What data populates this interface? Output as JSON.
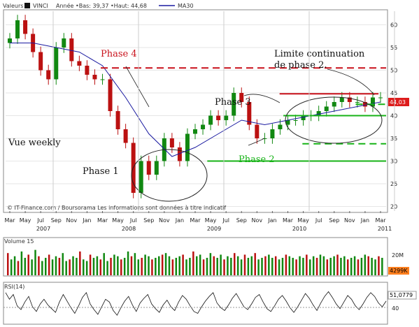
{
  "header": {
    "valeurs_label": "Valeurs",
    "symbol": "VINCI",
    "range": "Année •Bas: 39,37 •Haut: 44,68",
    "ma_label": "MA30"
  },
  "colors": {
    "candle_up": "#118811",
    "candle_down": "#bb1111",
    "ma": "#1a1aa0",
    "phase_red": "#c8101a",
    "phase_green": "#17b317",
    "last_price_bg": "#dd1c1c",
    "volume_bg": "#ff7f1e"
  },
  "annotations": {
    "phase4": "Phase 4",
    "phase1": "Phase 1",
    "phase2": "Phase 2",
    "phase3": "Phase 3",
    "limit_line1": "Limite continuation",
    "limit_line2": "de phase 2.",
    "vue_weekly": "Vue weekly",
    "watermark": "© IT-Finance.com / Boursorama Les informations sont données à titre indicatif"
  },
  "chart_data": [
    {
      "type": "candlestick",
      "title": "VINCI",
      "frequency": "weekly",
      "x_tick_labels": [
        "Mar",
        "May",
        "Jul",
        "Sep",
        "Nov",
        "Jan",
        "Mar",
        "May",
        "Jul",
        "Sep",
        "Nov",
        "Jan",
        "Mar",
        "May",
        "Jul",
        "Sep",
        "Nov",
        "Jan",
        "Mar",
        "May",
        "Jul",
        "Sep",
        "Nov",
        "Jan",
        "Mar"
      ],
      "year_labels": [
        "2007",
        "2008",
        "2009",
        "2010",
        "2011"
      ],
      "ylim": [
        19,
        63
      ],
      "y_ticks": [
        20,
        25,
        30,
        35,
        40,
        45,
        50,
        55,
        60
      ],
      "last_price_label": "44,03",
      "series": [
        {
          "name": "VINCI",
          "x": [
            0,
            1,
            2,
            3,
            4,
            5,
            6,
            7,
            8,
            9,
            10,
            11,
            12,
            13,
            14,
            15,
            16,
            17,
            18,
            19,
            20,
            21,
            22,
            23,
            24,
            25,
            26,
            27,
            28,
            29,
            30,
            31,
            32,
            33,
            34,
            35,
            36,
            37,
            38,
            39,
            40,
            41,
            42,
            43,
            44,
            45,
            46,
            47,
            48
          ],
          "close": [
            57,
            61,
            58,
            54,
            50,
            48,
            55,
            57,
            52,
            51,
            49,
            48,
            48,
            41,
            37,
            34,
            23,
            30,
            27,
            30,
            35,
            33,
            30,
            36,
            37,
            38,
            40,
            39,
            40,
            45,
            43,
            38,
            35,
            35,
            37,
            38,
            39,
            39,
            40,
            40,
            41,
            42,
            43,
            44,
            43,
            43,
            42,
            44,
            44
          ]
        },
        {
          "name": "MA30",
          "x": [
            0,
            3,
            6,
            9,
            12,
            15,
            18,
            21,
            24,
            27,
            30,
            33,
            36,
            39,
            42,
            45,
            48
          ],
          "values": [
            56,
            56,
            55,
            54,
            51,
            44,
            36,
            31,
            33,
            36,
            39,
            38,
            39,
            40,
            41,
            42,
            43
          ]
        }
      ],
      "horizontal_lines": [
        {
          "label": "Phase 4",
          "value": 50.5,
          "style": "dashed",
          "color": "red"
        },
        {
          "value": 44.8,
          "style": "solid",
          "color": "red"
        },
        {
          "value": 42.5,
          "style": "dashed",
          "color": "green"
        },
        {
          "value": 40,
          "style": "solid",
          "color": "green"
        },
        {
          "value": 33.8,
          "style": "dashed",
          "color": "green"
        },
        {
          "label": "Phase 2",
          "value": 30,
          "style": "solid",
          "color": "green"
        }
      ]
    },
    {
      "type": "bar",
      "title": "Volume 15",
      "y_tick_labels": [
        "20M",
        "10M"
      ],
      "last_value_label": "4299K",
      "values": [
        14,
        10,
        12,
        9,
        15,
        11,
        13,
        10,
        16,
        12,
        9,
        11,
        13,
        10,
        12,
        11,
        14,
        9,
        10,
        12,
        11,
        15,
        10,
        9,
        13,
        11,
        12,
        10,
        14,
        9,
        11,
        13,
        12,
        10,
        11,
        15,
        12,
        14,
        10,
        11,
        13,
        12,
        10,
        11,
        12,
        13,
        14,
        12,
        10,
        11,
        12,
        13,
        10,
        11,
        15,
        12,
        13,
        10,
        11,
        14,
        12,
        11,
        13,
        10,
        12,
        11,
        14,
        12,
        10,
        13,
        11,
        12,
        14,
        10,
        11,
        12,
        13,
        11,
        12,
        10,
        11,
        13,
        12,
        11,
        10,
        12,
        11,
        13,
        10,
        12,
        11,
        13,
        12,
        10,
        11,
        12,
        13,
        11,
        12,
        10,
        11,
        12,
        10,
        11,
        13,
        12,
        11,
        10,
        12,
        11
      ]
    },
    {
      "type": "line",
      "title": "RSI(14)",
      "y_tick_labels": [
        "60",
        "40"
      ],
      "last_value_label": "51,0779",
      "values": [
        62,
        55,
        60,
        48,
        44,
        52,
        58,
        47,
        42,
        50,
        55,
        49,
        45,
        41,
        52,
        60,
        53,
        46,
        40,
        48,
        57,
        62,
        50,
        44,
        39,
        47,
        55,
        52,
        43,
        38,
        46,
        53,
        58,
        49,
        42,
        51,
        56,
        60,
        50,
        45,
        41,
        49,
        54,
        47,
        43,
        52,
        59,
        55,
        48,
        42,
        40,
        47,
        53,
        58,
        62,
        51,
        46,
        43,
        49,
        56,
        61,
        54,
        47,
        44,
        50,
        57,
        60,
        52,
        45,
        42,
        48,
        55,
        59,
        53,
        46,
        41,
        47,
        54,
        61,
        56,
        49,
        43,
        51,
        58,
        63,
        57,
        50,
        45,
        52,
        59,
        55,
        48,
        44,
        50,
        57,
        62,
        58,
        51,
        47,
        53
      ]
    }
  ]
}
